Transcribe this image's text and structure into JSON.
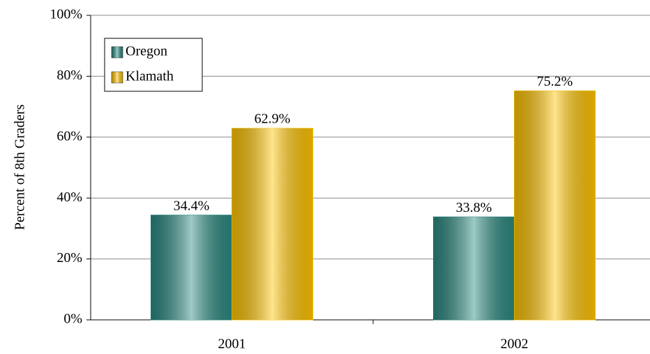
{
  "chart_data": {
    "type": "bar",
    "y_label": "Percent of 8th Graders",
    "categories": [
      "2001",
      "2002"
    ],
    "series": [
      {
        "name": "Oregon",
        "color": "#2a8a80",
        "values": [
          34.4,
          33.8
        ],
        "value_labels": [
          "34.4%",
          "33.8%"
        ]
      },
      {
        "name": "Klamath",
        "color": "#ffc400",
        "values": [
          62.9,
          75.2
        ],
        "value_labels": [
          "62.9%",
          "75.2%"
        ]
      }
    ],
    "ylim": [
      0,
      100
    ],
    "yticks": [
      {
        "value": 0,
        "label": "0%"
      },
      {
        "value": 20,
        "label": "20%"
      },
      {
        "value": 40,
        "label": "40%"
      },
      {
        "value": 60,
        "label": "60%"
      },
      {
        "value": 80,
        "label": "80%"
      },
      {
        "value": 100,
        "label": "100%"
      }
    ],
    "grid": true,
    "legend": "upper-left"
  }
}
